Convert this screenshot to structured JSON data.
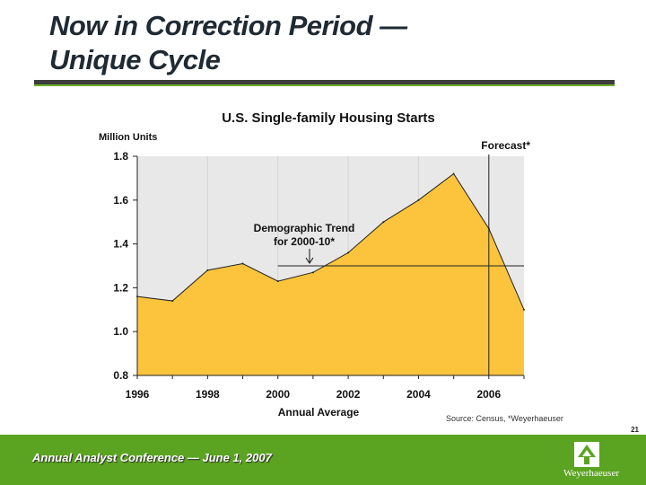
{
  "slide": {
    "title_line1": "Now in Correction Period —",
    "title_line2": "Unique Cycle",
    "source": "Source: Census, *Weyerhaeuser",
    "page_number": "21",
    "footer": "Annual Analyst Conference — June 1, 2007",
    "logo_text": "Weyerhaeuser"
  },
  "colors": {
    "area_fill": "#fcc43d",
    "plot_bg": "#e8e8e8",
    "footer_green": "#5ba421",
    "title": "#1f2a33"
  },
  "chart_data": {
    "type": "area",
    "title": "U.S. Single-family Housing Starts",
    "ylabel": "Million Units",
    "xlabel": "Annual Average",
    "xlim": [
      1996,
      2007
    ],
    "ylim": [
      0.8,
      1.8
    ],
    "xticks": [
      1996,
      1998,
      2000,
      2002,
      2004,
      2006
    ],
    "yticks": [
      0.8,
      1.0,
      1.2,
      1.4,
      1.6,
      1.8
    ],
    "ytick_labels": [
      "0.8",
      "1.0",
      "1.2",
      "1.4",
      "1.6",
      "1.8"
    ],
    "grid": true,
    "series": [
      {
        "x": [
          1996,
          1997,
          1998,
          1999,
          2000,
          2001,
          2002,
          2003,
          2004,
          2005,
          2006,
          2007
        ],
        "values": [
          1.16,
          1.14,
          1.28,
          1.31,
          1.23,
          1.27,
          1.36,
          1.5,
          1.6,
          1.72,
          1.47,
          1.1
        ]
      }
    ],
    "forecast": {
      "label": "Forecast*",
      "start_x": 2006
    },
    "reference_line": {
      "label_line1": "Demographic Trend",
      "label_line2": "for 2000-10*",
      "y": 1.3,
      "x_start": 2000,
      "x_end": 2007
    }
  }
}
